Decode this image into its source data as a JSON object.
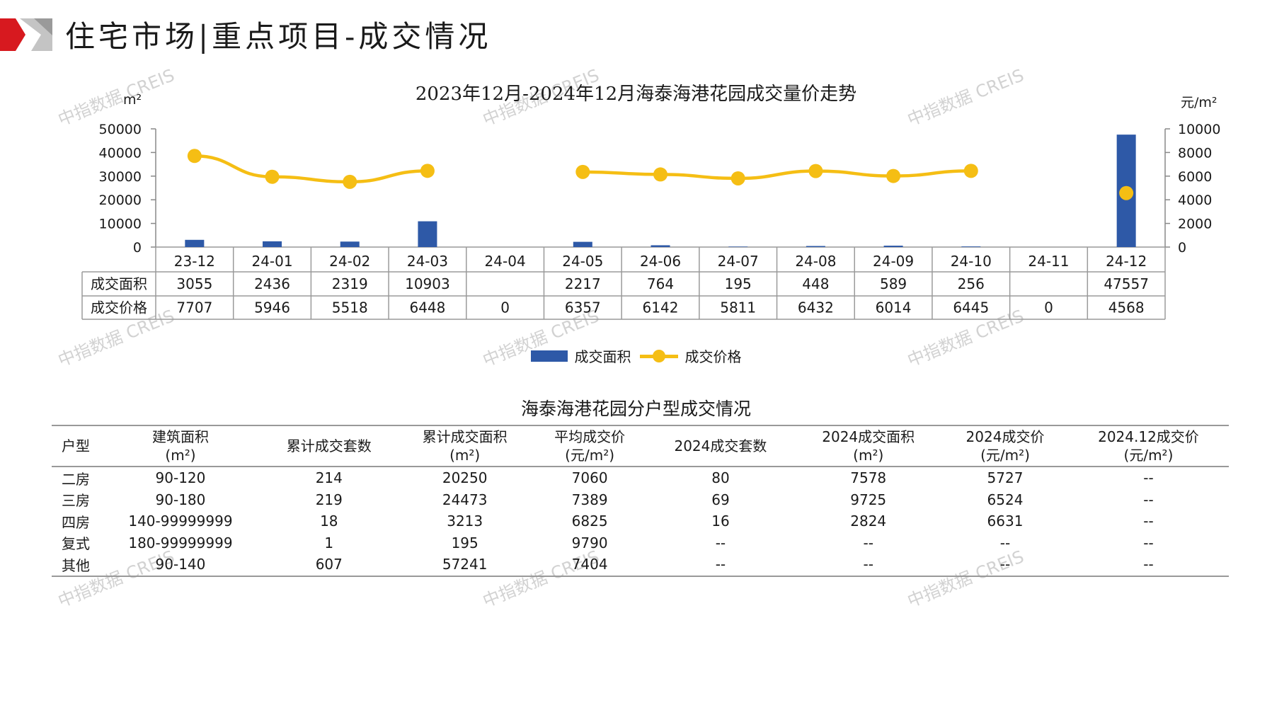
{
  "page": {
    "title": "住宅市场|重点项目-成交情况",
    "watermark": "中指数据 CREIS",
    "colors": {
      "bar": "#2e59a7",
      "line": "#f5be14",
      "logo_red": "#d7191f",
      "logo_gray": "#bdbdbd"
    }
  },
  "chart_data": {
    "type": "bar+line",
    "title": "2023年12月-2024年12月海泰海港花园成交量价走势",
    "y_left_unit": "m²",
    "y_right_unit": "元/m²",
    "ylim_left": [
      0,
      50000
    ],
    "ylim_right": [
      0,
      10000
    ],
    "y_left_ticks": [
      "50000",
      "40000",
      "30000",
      "20000",
      "10000",
      "0"
    ],
    "y_right_ticks": [
      "10000",
      "8000",
      "6000",
      "4000",
      "2000",
      "0"
    ],
    "categories": [
      "23-12",
      "24-01",
      "24-02",
      "24-03",
      "24-04",
      "24-05",
      "24-06",
      "24-07",
      "24-08",
      "24-09",
      "24-10",
      "24-11",
      "24-12"
    ],
    "series": [
      {
        "name": "成交面积",
        "type": "bar",
        "axis": "left",
        "values": [
          3055,
          2436,
          2319,
          10903,
          null,
          2217,
          764,
          195,
          448,
          589,
          256,
          null,
          47557
        ],
        "labels": [
          "3055",
          "2436",
          "2319",
          "10903",
          "",
          "2217",
          "764",
          "195",
          "448",
          "589",
          "256",
          "",
          "47557"
        ]
      },
      {
        "name": "成交价格",
        "type": "line",
        "axis": "right",
        "values": [
          7707,
          5946,
          5518,
          6448,
          0,
          6357,
          6142,
          5811,
          6432,
          6014,
          6445,
          0,
          4568
        ],
        "labels": [
          "7707",
          "5946",
          "5518",
          "6448",
          "0",
          "6357",
          "6142",
          "5811",
          "6432",
          "6014",
          "6445",
          "0",
          "4568"
        ]
      }
    ],
    "legend": [
      "成交面积",
      "成交价格"
    ],
    "legend_position": "bottom"
  },
  "unit_table": {
    "title": "海泰海港花园分户型成交情况",
    "headers": [
      [
        "户型",
        ""
      ],
      [
        "建筑面积",
        "(m²)"
      ],
      [
        "累计成交套数",
        ""
      ],
      [
        "累计成交面积",
        "(m²)"
      ],
      [
        "平均成交价",
        "(元/m²)"
      ],
      [
        "2024成交套数",
        ""
      ],
      [
        "2024成交面积",
        "(m²)"
      ],
      [
        "2024成交价",
        "(元/m²)"
      ],
      [
        "2024.12成交价",
        "(元/m²)"
      ]
    ],
    "rows": [
      [
        "二房",
        "90-120",
        "214",
        "20250",
        "7060",
        "80",
        "7578",
        "5727",
        "--"
      ],
      [
        "三房",
        "90-180",
        "219",
        "24473",
        "7389",
        "69",
        "9725",
        "6524",
        "--"
      ],
      [
        "四房",
        "140-99999999",
        "18",
        "3213",
        "6825",
        "16",
        "2824",
        "6631",
        "--"
      ],
      [
        "复式",
        "180-99999999",
        "1",
        "195",
        "9790",
        "--",
        "--",
        "--",
        "--"
      ],
      [
        "其他",
        "90-140",
        "607",
        "57241",
        "7404",
        "--",
        "--",
        "--",
        "--"
      ]
    ]
  }
}
